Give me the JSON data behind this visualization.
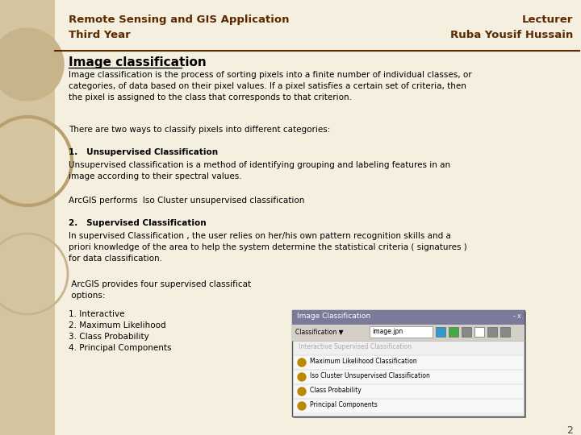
{
  "bg_color": "#f5efe0",
  "sidebar_color": "#d4c5a0",
  "header_left": "Remote Sensing and GIS Application\nThird Year",
  "header_right": "Lecturer\nRuba Yousif Hussain",
  "header_text_color": "#5c2a00",
  "divider_color": "#5c2a00",
  "title": "Image classification",
  "title_color": "#000000",
  "body_color": "#000000",
  "para1": "Image classification is the process of sorting pixels into a finite number of individual classes, or\ncategories, of data based on their pixel values. If a pixel satisfies a certain set of criteria, then\nthe pixel is assigned to the class that corresponds to that criterion.",
  "two_ways": "There are two ways to classify pixels into different categories:",
  "section1_header": "1.   Unsupervised Classification",
  "para2": "Unsupervised classification is a method of identifying grouping and labeling features in an\nimage according to their spectral values.",
  "arcgis1": "ArcGIS performs  Iso Cluster unsupervised classification",
  "section2_header": "2.   Supervised Classification",
  "para3": "In supervised Classification , the user relies on her/his own pattern recognition skills and a\npriori knowledge of the area to help the system determine the statistical criteria ( signatures )\nfor data classification.",
  "arcgis2a": " ArcGIS provides four supervised classificat",
  "arcgis2b": " options:",
  "list_items": [
    "1. Interactive",
    "2. Maximum Likelihood",
    "3. Class Probability",
    "4. Principal Components"
  ],
  "dialog_title": "Image Classification",
  "dialog_toolbar_label": "Classification",
  "dialog_field": "image.jpn",
  "dialog_menu_items": [
    "Interactive Supervised Classification",
    "Maximum Likelihood Classification",
    "Iso Cluster Unsupervised Classification",
    "Class Probability",
    "Principal Components"
  ],
  "page_number": "2",
  "sidebar_color2": "#c8b48a",
  "sidebar_color3": "#b8a070"
}
